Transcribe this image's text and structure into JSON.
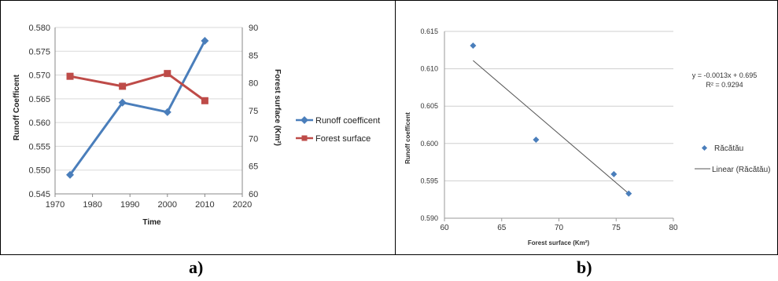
{
  "captions": {
    "a": "a)",
    "b": "b)"
  },
  "chart_data": [
    {
      "type": "line",
      "xlabel": "Time",
      "ylabel": "Runoff Coefficent",
      "y2label": "Forest surface (Km²)",
      "xlim": [
        1970,
        2020
      ],
      "xticks": [
        1970,
        1980,
        1990,
        2000,
        2010,
        2020
      ],
      "ylim": [
        0.545,
        0.58
      ],
      "yticks": [
        "0.545",
        "0.550",
        "0.555",
        "0.560",
        "0.565",
        "0.570",
        "0.575",
        "0.580"
      ],
      "y2lim": [
        60,
        90
      ],
      "y2ticks": [
        60,
        65,
        70,
        75,
        80,
        85,
        90
      ],
      "grid": "horizontal",
      "legend": "right",
      "series": [
        {
          "name": "Runoff coefficent",
          "axis": "left",
          "color": "#4a7ebb",
          "marker": "diamond",
          "x": [
            1974,
            1988,
            2000,
            2010
          ],
          "y": [
            0.549,
            0.5642,
            0.5622,
            0.5772
          ]
        },
        {
          "name": "Forest surface",
          "axis": "right",
          "color": "#be4b48",
          "marker": "square",
          "x": [
            1974,
            1988,
            2000,
            2010
          ],
          "y": [
            81.2,
            79.4,
            81.7,
            76.8
          ]
        }
      ]
    },
    {
      "type": "scatter",
      "xlabel": "Forest surface (Km²)",
      "ylabel": "Runoff coefficent",
      "xlim": [
        60,
        80
      ],
      "xticks": [
        60,
        65,
        70,
        75,
        80
      ],
      "ylim": [
        0.59,
        0.615
      ],
      "yticks": [
        "0.590",
        "0.595",
        "0.600",
        "0.605",
        "0.610",
        "0.615"
      ],
      "grid": "horizontal",
      "legend": "right",
      "equation": "y = -0.0013x + 0.695",
      "r_squared": "R² = 0.9294",
      "series": [
        {
          "name": "Răcătău",
          "color": "#4a7ebb",
          "marker": "diamond",
          "x": [
            62.5,
            68.0,
            74.8,
            76.1
          ],
          "y": [
            0.6131,
            0.6005,
            0.5959,
            0.5933
          ]
        },
        {
          "name": "Linear (Răcătău)",
          "color": "#555555",
          "type": "trendline",
          "x": [
            62.5,
            76.1
          ],
          "y": [
            0.6111,
            0.5933
          ]
        }
      ]
    }
  ]
}
